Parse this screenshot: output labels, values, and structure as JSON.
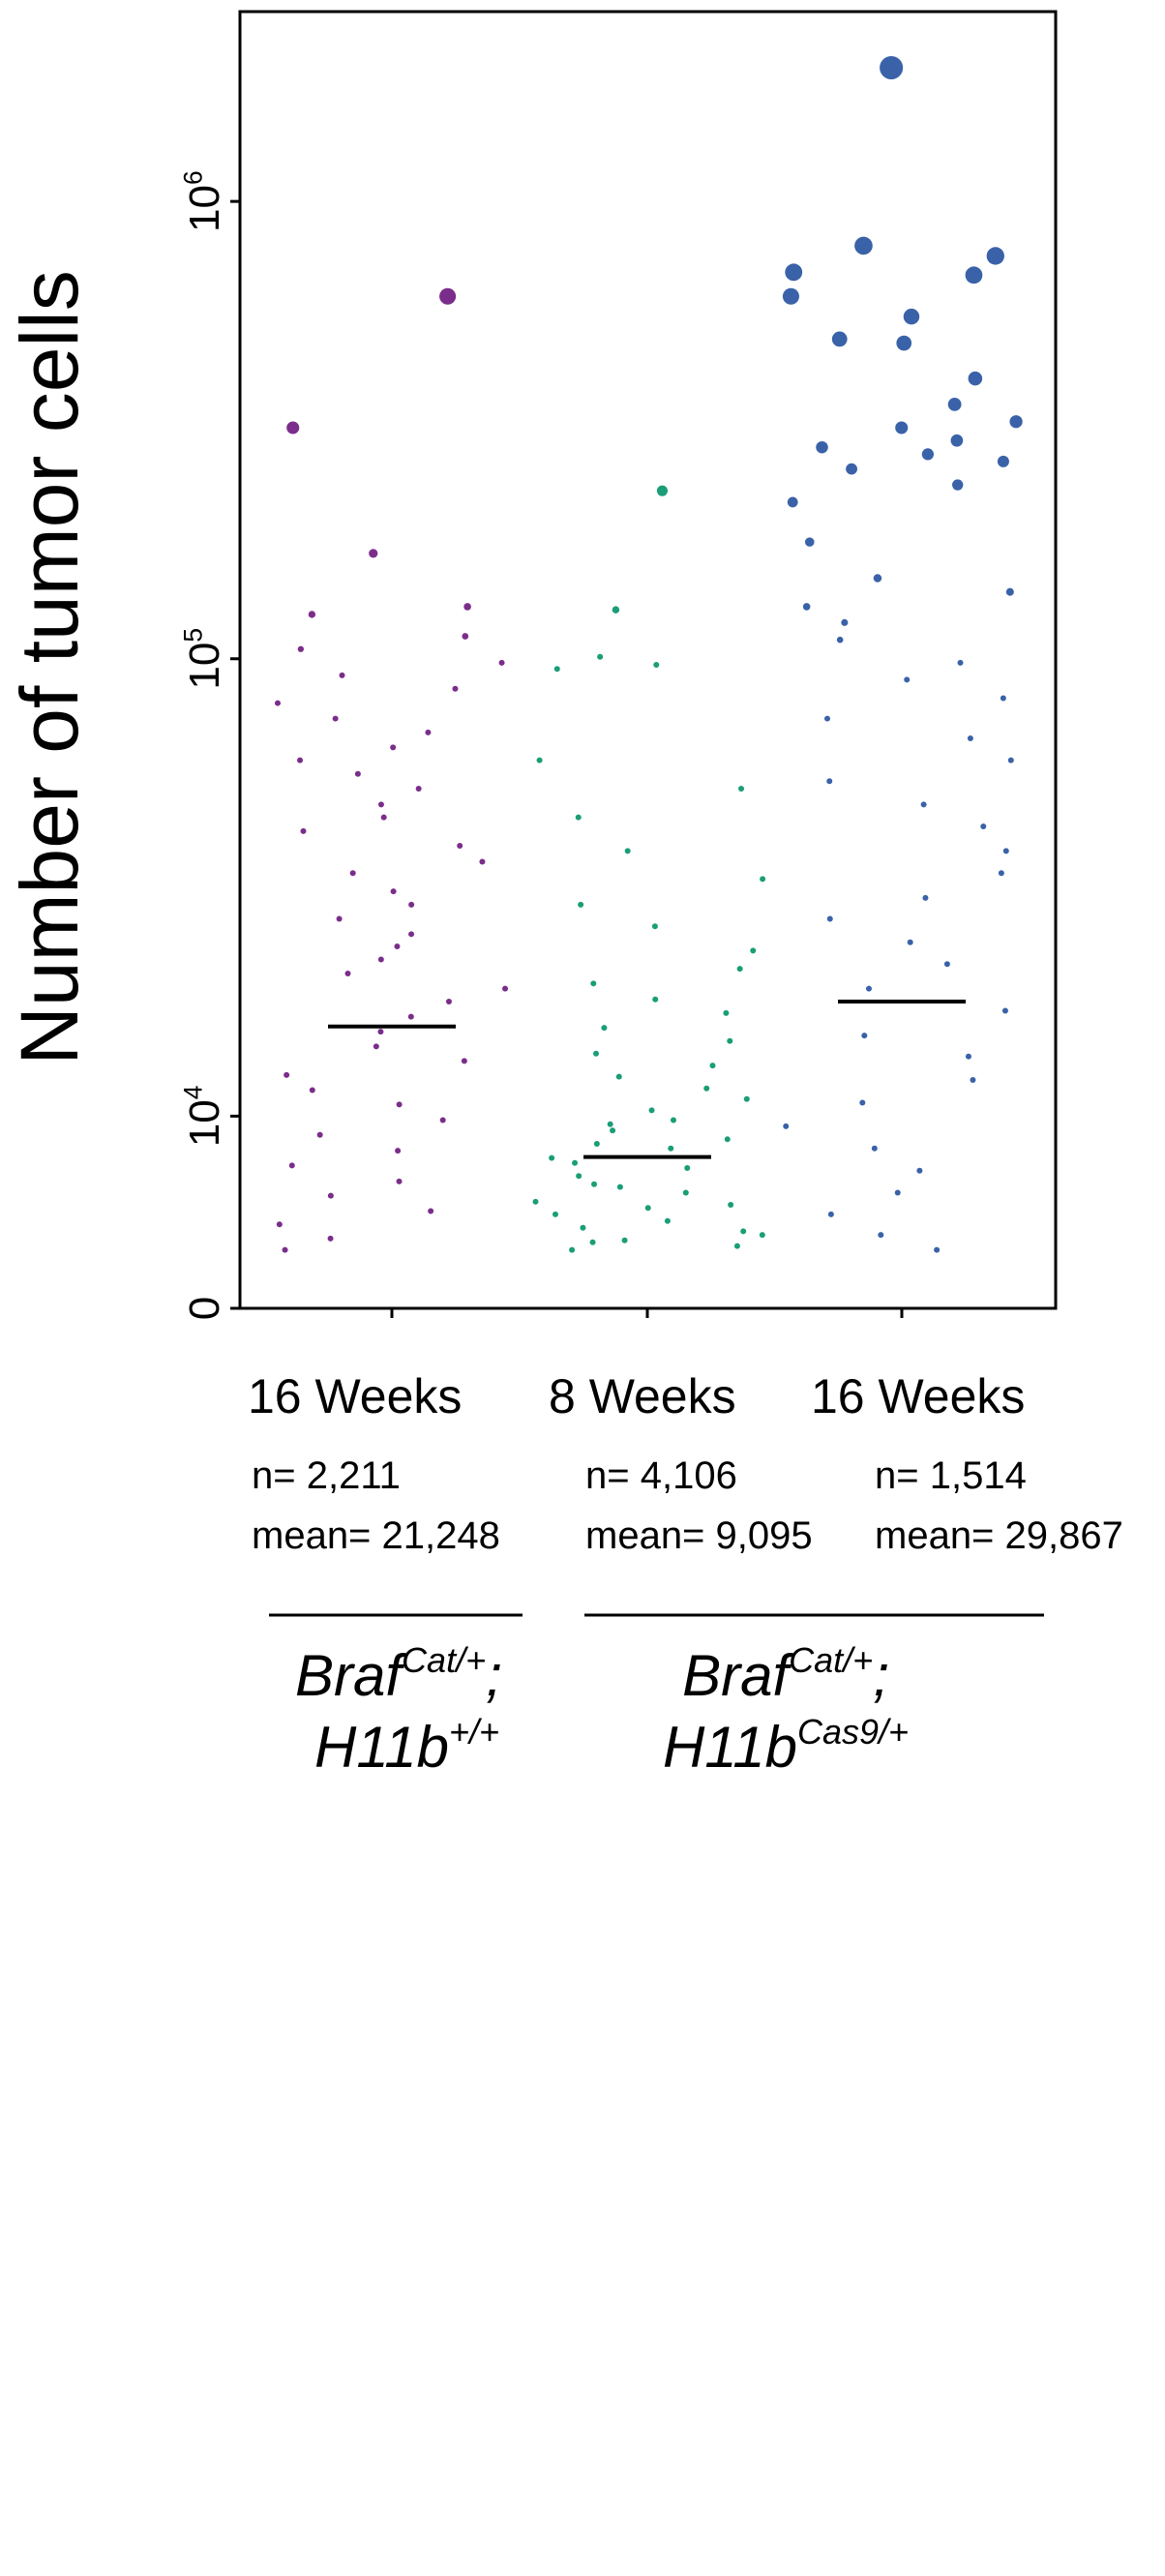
{
  "chart_data": {
    "type": "strip",
    "ylabel": "Number of tumor cells",
    "log_scale": true,
    "ylim": [
      3800,
      2600000
    ],
    "yticks": [
      {
        "value": 0,
        "label": [
          "0"
        ]
      },
      {
        "value": 10000,
        "label": [
          "10",
          "4"
        ]
      },
      {
        "value": 100000,
        "label": [
          "10",
          "5"
        ]
      },
      {
        "value": 1000000,
        "label": [
          "10",
          "6"
        ]
      }
    ],
    "series": [
      {
        "name": "16 Weeks",
        "n": "n= 2,211",
        "mean": "mean= 21,248",
        "color": "#7b2d8b",
        "median": 15700,
        "values": [
          620000,
          320000,
          170000,
          130000,
          125000,
          112000,
          105000,
          98000,
          92000,
          86000,
          80000,
          74000,
          69000,
          64000,
          60000,
          56000,
          52000,
          48000,
          45000,
          42000,
          39000,
          36000,
          34000,
          31000,
          29000,
          27000,
          25000,
          23500,
          22000,
          20500,
          19000,
          17800,
          16500,
          15300,
          14200,
          13200,
          12300,
          11400,
          10600,
          9800,
          9100,
          8400,
          7800,
          7200,
          6700,
          6200,
          5800,
          5400,
          5100
        ]
      },
      {
        "name": "8 Weeks",
        "n": "n= 4,106",
        "mean": "mean= 9,095",
        "color": "#1a9e77",
        "median": 8140,
        "values": [
          233000,
          128000,
          101000,
          97000,
          95000,
          60000,
          52000,
          45000,
          38000,
          33000,
          29000,
          26000,
          23000,
          21000,
          19500,
          18000,
          16800,
          15600,
          14600,
          13700,
          12900,
          12200,
          11500,
          10900,
          10300,
          9800,
          9300,
          8900,
          8500,
          8100,
          7700,
          7400,
          7100,
          6800,
          6500,
          6300,
          6100,
          5900,
          5700,
          5500,
          5350,
          5200,
          5100,
          9600,
          8700,
          7900,
          7000,
          6400,
          5600,
          5300
        ]
      },
      {
        "name": "16 Weeks",
        "n": "n= 1,514",
        "mean": "mean= 29,867",
        "color": "#3a62a8",
        "median": 17800,
        "values": [
          1960000,
          800000,
          760000,
          700000,
          690000,
          620000,
          560000,
          500000,
          490000,
          410000,
          360000,
          330000,
          320000,
          300000,
          290000,
          280000,
          270000,
          260000,
          240000,
          220000,
          180000,
          150000,
          140000,
          130000,
          120000,
          110000,
          98000,
          90000,
          82000,
          74000,
          67000,
          60000,
          54000,
          48000,
          43000,
          38000,
          34000,
          30000,
          27000,
          24000,
          21500,
          19000,
          17000,
          15000,
          13500,
          12000,
          10700,
          9500,
          8500,
          7600,
          6800,
          6100,
          5500,
          5100
        ]
      }
    ],
    "groups": [
      {
        "lines": [
          [
            "Braf",
            "Cat/+",
            ";"
          ],
          [
            "H11b",
            "+/+"
          ]
        ]
      },
      {
        "lines": [
          [
            "Braf",
            "Cat/+",
            ";"
          ],
          [
            "H11b",
            "Cas9/+"
          ]
        ]
      }
    ]
  }
}
